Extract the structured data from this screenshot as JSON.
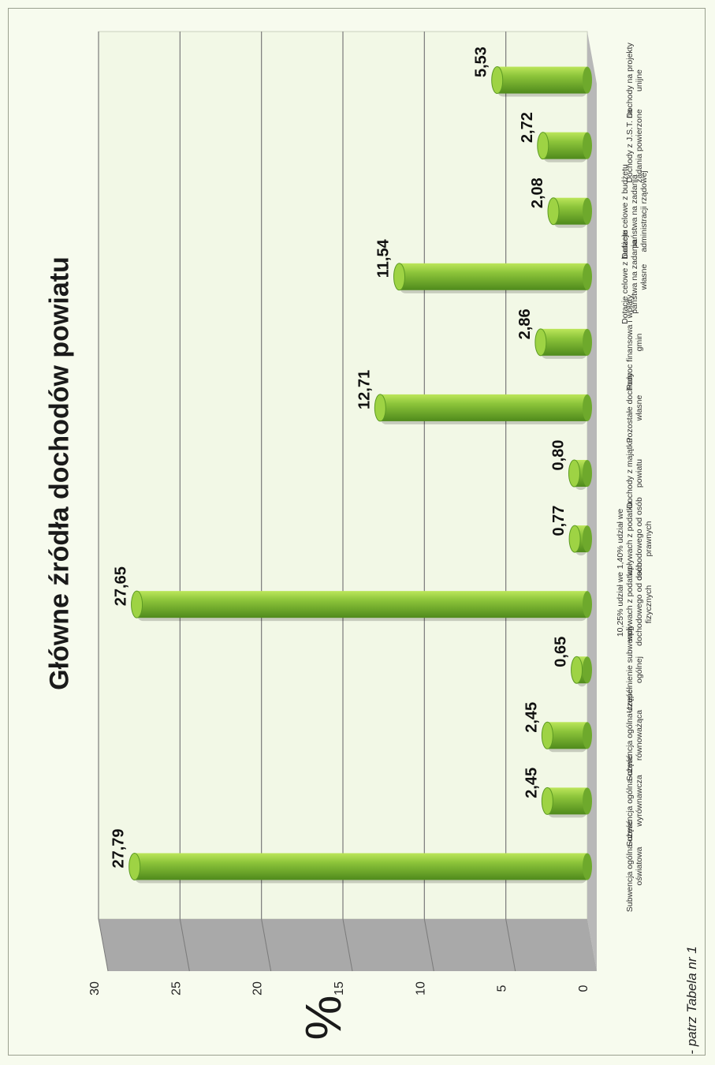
{
  "footnote": "- patrz Tabela nr 1",
  "colors": {
    "bar_light": "#bce65a",
    "bar_mid": "#8cc43a",
    "bar_dark": "#4f8a1c",
    "gridline": "#7a7a7a",
    "floor": "#b8b8b8",
    "plot_bg": "#f2f8e6"
  },
  "chart_data": {
    "type": "bar",
    "orientation": "rotated-90",
    "title": "Główne źródła dochodów powiatu",
    "ylabel": "%",
    "ylim": [
      0,
      30
    ],
    "yticks": [
      "0",
      "5",
      "10",
      "15",
      "20",
      "25",
      "30"
    ],
    "grid": true,
    "style": "3d-cylinder",
    "categories": [
      "Subwencja ogólna-część oświatowa",
      "Subwencja ogólna-część wyrównawcza",
      "Subwencja ogólna-część równoważąca",
      "Uzupełnienie subwencji ogólnej",
      "10,25% udział we wpływach z podatku dochodowego od osób fizycznych",
      "1,40% udział we wpływach z podatku dochodowego od osób prawnych",
      "Dochody z majątku powiatu",
      "Pozostałe dochody własne",
      "Pomoc finansowa i wpłaty gmin",
      "Dotacje celowe z budżetu państwa na zadania własne",
      "Dotacje celowe z budżetu państwa na zadania administracji rządowej",
      "Dochody z J.S.T. na zadania powierzone",
      "Dochody na projekty unijne"
    ],
    "values": [
      27.79,
      2.45,
      2.45,
      0.65,
      27.65,
      0.77,
      0.8,
      12.71,
      2.86,
      11.54,
      2.08,
      2.72,
      5.53
    ],
    "data_labels": [
      "27,79",
      "2,45",
      "2,45",
      "0,65",
      "27,65",
      "0,77",
      "0,80",
      "12,71",
      "2,86",
      "11,54",
      "2,08",
      "2,72",
      "5,53"
    ]
  }
}
